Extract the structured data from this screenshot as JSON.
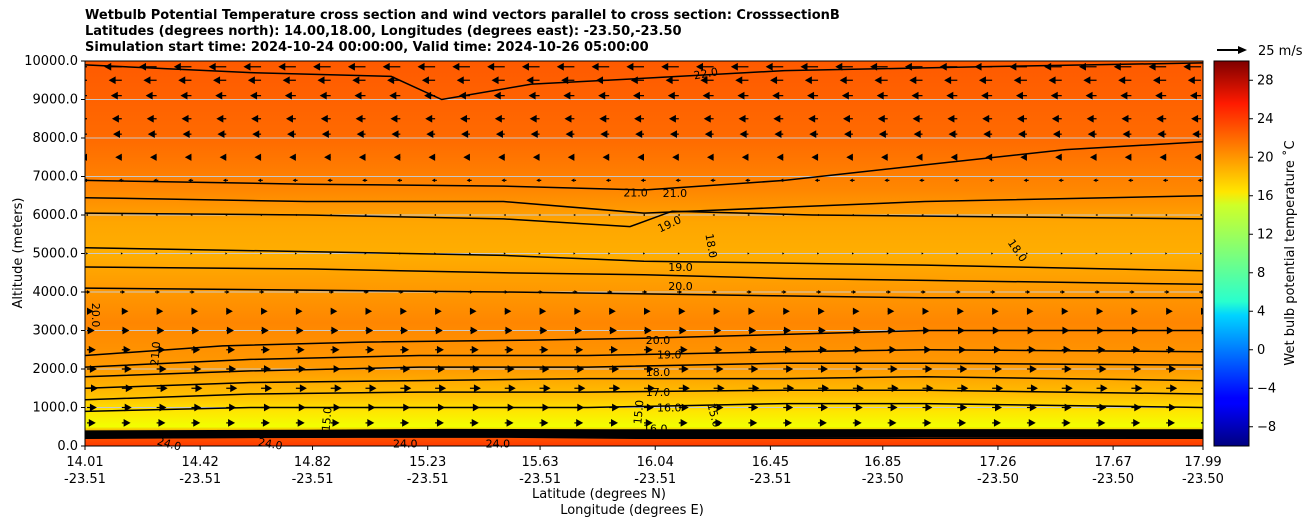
{
  "title_lines": [
    "Wetbulb Potential Temperature cross section and wind vectors parallel to cross section: CrosssectionB",
    "Latitudes (degrees north): 14.00,18.00, Longitudes (degrees east): -23.50,-23.50",
    "Simulation start time: 2024-10-24 00:00:00, Valid time: 2024-10-26 05:00:00"
  ],
  "chart_data": {
    "type": "heatmap",
    "subtype": "cross-section contour with wind vectors",
    "xlabel_lat": "Latitude (degrees N)",
    "xlabel_lon": "Longitude (degrees E)",
    "ylabel": "Altitude (meters)",
    "ylim": [
      0,
      10000
    ],
    "xlim": [
      14.01,
      17.99
    ],
    "grid": "horizontal",
    "y_ticks": [
      "0.0",
      "1000.0",
      "2000.0",
      "3000.0",
      "4000.0",
      "5000.0",
      "6000.0",
      "7000.0",
      "8000.0",
      "9000.0",
      "10000.0"
    ],
    "y_tick_values": [
      0,
      1000,
      2000,
      3000,
      4000,
      5000,
      6000,
      7000,
      8000,
      9000,
      10000
    ],
    "x_ticks": [
      {
        "lat": "14.01",
        "lon": "-23.51",
        "value": 14.01
      },
      {
        "lat": "14.42",
        "lon": "-23.51",
        "value": 14.42
      },
      {
        "lat": "14.82",
        "lon": "-23.51",
        "value": 14.82
      },
      {
        "lat": "15.23",
        "lon": "-23.51",
        "value": 15.23
      },
      {
        "lat": "15.63",
        "lon": "-23.51",
        "value": 15.63
      },
      {
        "lat": "16.04",
        "lon": "-23.51",
        "value": 16.04
      },
      {
        "lat": "16.45",
        "lon": "-23.51",
        "value": 16.45
      },
      {
        "lat": "16.85",
        "lon": "-23.50",
        "value": 16.85
      },
      {
        "lat": "17.26",
        "lon": "-23.50",
        "value": 17.26
      },
      {
        "lat": "17.67",
        "lon": "-23.50",
        "value": 17.67
      },
      {
        "lat": "17.99",
        "lon": "-23.50",
        "value": 17.99
      }
    ],
    "colorbar": {
      "label": "Wet bulb potential temperature ˚C",
      "range": [
        -10,
        30
      ],
      "ticks": [
        "−8",
        "−4",
        "0",
        "4",
        "8",
        "12",
        "16",
        "20",
        "24",
        "28"
      ],
      "tick_values": [
        -8,
        -4,
        0,
        4,
        8,
        12,
        16,
        20,
        24,
        28
      ],
      "colormap": "jet"
    },
    "quiver_key": {
      "label": "25 m/s",
      "value": 25
    },
    "wind_rows": [
      {
        "z": 9850,
        "u": -0.8
      },
      {
        "z": 9500,
        "u": -0.6
      },
      {
        "z": 9100,
        "u": -0.5
      },
      {
        "z": 8500,
        "u": -0.45
      },
      {
        "z": 8100,
        "u": -0.4
      },
      {
        "z": 7500,
        "u": -0.3
      },
      {
        "z": 6900,
        "u": -0.15
      },
      {
        "z": 6000,
        "u": -0.05
      },
      {
        "z": 5000,
        "u": 0.05
      },
      {
        "z": 4000,
        "u": 0.15
      },
      {
        "z": 3500,
        "u": 0.3
      },
      {
        "z": 3000,
        "u": 0.35
      },
      {
        "z": 2500,
        "u": 0.4
      },
      {
        "z": 2000,
        "u": 0.45
      },
      {
        "z": 1500,
        "u": 0.5
      },
      {
        "z": 1000,
        "u": 0.45
      },
      {
        "z": 600,
        "u": 0.4
      }
    ],
    "contours": [
      {
        "level": "22.0",
        "points": [
          [
            14.01,
            9900
          ],
          [
            14.6,
            9700
          ],
          [
            15.1,
            9600
          ],
          [
            15.28,
            9000
          ],
          [
            15.6,
            9400
          ],
          [
            16.0,
            9550
          ],
          [
            16.5,
            9750
          ],
          [
            17.2,
            9850
          ],
          [
            17.99,
            9950
          ]
        ]
      },
      {
        "level": "21.0",
        "points": [
          [
            14.01,
            6900
          ],
          [
            14.8,
            6800
          ],
          [
            15.5,
            6750
          ],
          [
            16.0,
            6650
          ],
          [
            16.5,
            6900
          ],
          [
            17.0,
            7300
          ],
          [
            17.5,
            7700
          ],
          [
            17.99,
            7900
          ]
        ]
      },
      {
        "level": "20.0",
        "points": [
          [
            14.01,
            6450
          ],
          [
            14.8,
            6350
          ],
          [
            15.5,
            6350
          ],
          [
            16.0,
            6050
          ],
          [
            16.5,
            6200
          ],
          [
            17.0,
            6350
          ],
          [
            17.99,
            6500
          ]
        ]
      },
      {
        "level": "19.0",
        "points": [
          [
            14.01,
            6050
          ],
          [
            14.8,
            6000
          ],
          [
            15.5,
            5900
          ],
          [
            15.95,
            5700
          ],
          [
            16.1,
            6100
          ],
          [
            16.6,
            6000
          ],
          [
            17.99,
            5900
          ]
        ]
      },
      {
        "level": "18.0",
        "points": [
          [
            14.01,
            5150
          ],
          [
            14.8,
            5050
          ],
          [
            15.5,
            4950
          ],
          [
            16.0,
            4800
          ],
          [
            16.5,
            4750
          ],
          [
            17.0,
            4700
          ],
          [
            17.99,
            4550
          ]
        ]
      },
      {
        "level": "19.0",
        "points": [
          [
            14.01,
            4650
          ],
          [
            14.8,
            4600
          ],
          [
            15.5,
            4500
          ],
          [
            16.0,
            4450
          ],
          [
            16.5,
            4350
          ],
          [
            17.0,
            4300
          ],
          [
            17.99,
            4200
          ]
        ]
      },
      {
        "level": "20.0",
        "points": [
          [
            14.01,
            4100
          ],
          [
            14.8,
            4050
          ],
          [
            15.5,
            4000
          ],
          [
            16.0,
            3950
          ],
          [
            16.5,
            3900
          ],
          [
            17.0,
            3850
          ],
          [
            17.99,
            3850
          ]
        ]
      },
      {
        "level": "20.0",
        "points": [
          [
            14.01,
            2350
          ],
          [
            14.5,
            2600
          ],
          [
            15.0,
            2700
          ],
          [
            15.6,
            2750
          ],
          [
            16.0,
            2800
          ],
          [
            16.5,
            2900
          ],
          [
            17.0,
            3000
          ],
          [
            17.99,
            3000
          ]
        ]
      },
      {
        "level": "19.0",
        "points": [
          [
            14.01,
            2050
          ],
          [
            14.6,
            2250
          ],
          [
            15.2,
            2350
          ],
          [
            15.8,
            2350
          ],
          [
            16.5,
            2450
          ],
          [
            17.0,
            2500
          ],
          [
            17.99,
            2450
          ]
        ]
      },
      {
        "level": "18.0",
        "points": [
          [
            14.01,
            1800
          ],
          [
            14.6,
            1950
          ],
          [
            15.2,
            2050
          ],
          [
            15.8,
            2050
          ],
          [
            16.5,
            2150
          ],
          [
            17.0,
            2150
          ],
          [
            17.99,
            2100
          ]
        ]
      },
      {
        "level": "17.0",
        "points": [
          [
            14.01,
            1500
          ],
          [
            14.6,
            1650
          ],
          [
            15.2,
            1700
          ],
          [
            15.8,
            1750
          ],
          [
            16.5,
            1750
          ],
          [
            17.0,
            1800
          ],
          [
            17.99,
            1700
          ]
        ]
      },
      {
        "level": "16.0",
        "points": [
          [
            14.01,
            1200
          ],
          [
            14.6,
            1350
          ],
          [
            15.2,
            1400
          ],
          [
            15.8,
            1400
          ],
          [
            16.5,
            1450
          ],
          [
            17.0,
            1450
          ],
          [
            17.99,
            1350
          ]
        ]
      },
      {
        "level": "15.0",
        "points": [
          [
            14.01,
            900
          ],
          [
            14.6,
            1000
          ],
          [
            15.2,
            1000
          ],
          [
            15.8,
            1000
          ],
          [
            16.5,
            1100
          ],
          [
            17.0,
            1100
          ],
          [
            17.99,
            1000
          ]
        ]
      },
      {
        "level": "24.0",
        "points": [
          [
            14.01,
            200
          ],
          [
            14.5,
            220
          ],
          [
            15.0,
            230
          ],
          [
            15.5,
            230
          ],
          [
            16.0,
            200
          ],
          [
            16.5,
            200
          ],
          [
            17.0,
            200
          ],
          [
            17.99,
            200
          ]
        ]
      }
    ],
    "contour_labels": [
      {
        "text": "22.0",
        "x": 16.22,
        "y": 9680,
        "rot": -10
      },
      {
        "text": "21.0",
        "x": 15.97,
        "y": 6580,
        "rot": 0
      },
      {
        "text": "21.0",
        "x": 16.11,
        "y": 6570,
        "rot": 0
      },
      {
        "text": "19.0",
        "x": 16.09,
        "y": 5770,
        "rot": -25
      },
      {
        "text": "18.0",
        "x": 16.24,
        "y": 5200,
        "rot": 80
      },
      {
        "text": "18.0",
        "x": 17.33,
        "y": 5080,
        "rot": 55
      },
      {
        "text": "19.0",
        "x": 16.13,
        "y": 4650,
        "rot": 0
      },
      {
        "text": "20.0",
        "x": 16.13,
        "y": 4150,
        "rot": 0
      },
      {
        "text": "20.0",
        "x": 14.05,
        "y": 3400,
        "rot": 90
      },
      {
        "text": "21.0",
        "x": 14.26,
        "y": 2400,
        "rot": -85
      },
      {
        "text": "20.0",
        "x": 16.05,
        "y": 2750,
        "rot": 0
      },
      {
        "text": "19.0",
        "x": 16.09,
        "y": 2380,
        "rot": 0
      },
      {
        "text": "18.0",
        "x": 16.05,
        "y": 1920,
        "rot": 0
      },
      {
        "text": "17.0",
        "x": 16.05,
        "y": 1400,
        "rot": 0
      },
      {
        "text": "16.0",
        "x": 16.09,
        "y": 1000,
        "rot": 0
      },
      {
        "text": "15.0",
        "x": 16.25,
        "y": 800,
        "rot": 75
      },
      {
        "text": "15.0",
        "x": 15.98,
        "y": 880,
        "rot": -85
      },
      {
        "text": "15.0",
        "x": 14.87,
        "y": 700,
        "rot": -85
      },
      {
        "text": "16.0",
        "x": 16.04,
        "y": 450,
        "rot": 0
      },
      {
        "text": "24.0",
        "x": 14.31,
        "y": 60,
        "rot": 15
      },
      {
        "text": "24.0",
        "x": 14.67,
        "y": 60,
        "rot": 10
      },
      {
        "text": "24.0",
        "x": 15.15,
        "y": 60,
        "rot": 0
      },
      {
        "text": "24.0",
        "x": 15.48,
        "y": 60,
        "rot": 0
      }
    ]
  }
}
